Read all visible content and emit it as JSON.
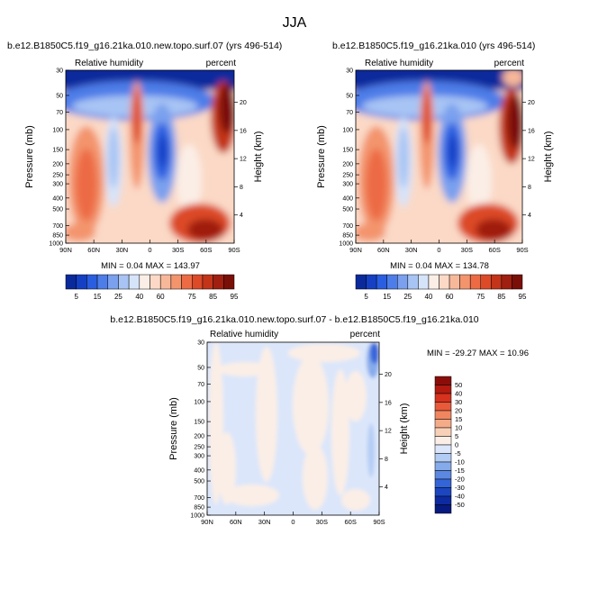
{
  "main_title": "JJA",
  "charts": {
    "top_left": {
      "case_title": "b.e12.B1850C5.f19_g16.21ka.010.new.topo.surf.07 (yrs 496-514)",
      "var_label": "Relative humidity",
      "unit_label": "percent",
      "ylabel": "Pressure (mb)",
      "y2label": "Height (km)",
      "stats": "MIN =   0.04   MAX = 143.97"
    },
    "top_right": {
      "case_title": "b.e12.B1850C5.f19_g16.21ka.010 (yrs 496-514)",
      "var_label": "Relative humidity",
      "unit_label": "percent",
      "ylabel": "Pressure (mb)",
      "y2label": "Height (km)",
      "stats": "MIN =   0.04   MAX = 134.78"
    },
    "diff": {
      "case_title": "b.e12.B1850C5.f19_g16.21ka.010.new.topo.surf.07 - b.e12.B1850C5.f19_g16.21ka.010",
      "var_label": "Relative humidity",
      "unit_label": "percent",
      "ylabel": "Pressure (mb)",
      "y2label": "Height (km)",
      "stats": "MIN = -29.27   MAX =  10.96"
    }
  },
  "chart_data": [
    {
      "type": "heatmap",
      "panel": "top_left",
      "x_ticks": [
        "90N",
        "60N",
        "30N",
        "0",
        "30S",
        "60S",
        "90S"
      ],
      "y_ticks": [
        "30",
        "50",
        "70",
        "100",
        "150",
        "200",
        "250",
        "300",
        "400",
        "500",
        "700",
        "850",
        "1000"
      ],
      "y2_ticks": [
        "20",
        "16",
        "12",
        "8",
        "4"
      ],
      "xlim": [
        90,
        -90
      ],
      "ylim": [
        1000,
        30
      ],
      "min": 0.04,
      "max": 143.97
    },
    {
      "type": "heatmap",
      "panel": "top_right",
      "x_ticks": [
        "90N",
        "60N",
        "30N",
        "0",
        "30S",
        "60S",
        "90S"
      ],
      "y_ticks": [
        "30",
        "50",
        "70",
        "100",
        "150",
        "200",
        "250",
        "300",
        "400",
        "500",
        "700",
        "850",
        "1000"
      ],
      "y2_ticks": [
        "20",
        "16",
        "12",
        "8",
        "4"
      ],
      "xlim": [
        90,
        -90
      ],
      "ylim": [
        1000,
        30
      ],
      "min": 0.04,
      "max": 134.78
    },
    {
      "type": "heatmap",
      "panel": "diff",
      "x_ticks": [
        "90N",
        "60N",
        "30N",
        "0",
        "30S",
        "60S",
        "90S"
      ],
      "y_ticks": [
        "30",
        "50",
        "70",
        "100",
        "150",
        "200",
        "250",
        "300",
        "400",
        "500",
        "700",
        "850",
        "1000"
      ],
      "y2_ticks": [
        "20",
        "16",
        "12",
        "8",
        "4"
      ],
      "xlim": [
        90,
        -90
      ],
      "ylim": [
        1000,
        30
      ],
      "min": -29.27,
      "max": 10.96
    }
  ],
  "colorbar_top": {
    "labels": [
      "5",
      "15",
      "25",
      "40",
      "60",
      "75",
      "85",
      "95"
    ],
    "levels": [
      5,
      10,
      15,
      20,
      25,
      30,
      40,
      50,
      60,
      65,
      70,
      75,
      80,
      85,
      90,
      95
    ],
    "colors": [
      "#0a2a9c",
      "#1540c4",
      "#2a5ee0",
      "#4d7de8",
      "#7aa0ee",
      "#a8c4f4",
      "#d6e4fa",
      "#fbeee6",
      "#fbd9c6",
      "#f7b899",
      "#f3946d",
      "#ec6b45",
      "#dc4a28",
      "#c33419",
      "#a01f10",
      "#7a0f08"
    ]
  },
  "colorbar_diff": {
    "labels": [
      "50",
      "40",
      "30",
      "20",
      "15",
      "10",
      "5",
      "0",
      "-5",
      "-10",
      "-15",
      "-20",
      "-30",
      "-40",
      "-50"
    ],
    "colors": [
      "#8b0d0a",
      "#b31a10",
      "#d6321e",
      "#e85a3a",
      "#f08660",
      "#f4ab88",
      "#f8d0b8",
      "#fbeee6",
      "#dbe6fa",
      "#b3ccf4",
      "#86abeb",
      "#5c88e2",
      "#3465d8",
      "#1c46c0",
      "#0d2aa0",
      "#061a80"
    ]
  }
}
